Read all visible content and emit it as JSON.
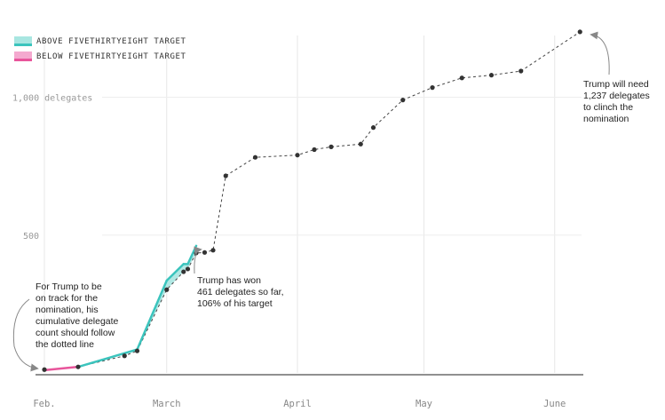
{
  "legend": {
    "above": {
      "label": "ABOVE FIVETHIRTYEIGHT TARGET",
      "color": "#3bc4bd",
      "fill": "#a8e6e1"
    },
    "below": {
      "label": "BELOW FIVETHIRTYEIGHT TARGET",
      "color": "#e8559b",
      "fill": "#f4a9cf"
    }
  },
  "annotations": {
    "current": "Trump has won\n461 delegates so far,\n106% of his target",
    "target": "Trump will need\n1,237 delegates\nto clinch the\nnomination",
    "track": "For Trump to be\non track for the\nnomination, his\ncumulative delegate\ncount should follow\nthe dotted line"
  },
  "chart_data": {
    "type": "line",
    "x_unit": "date (2016)",
    "xlim": [
      "2016-02-01",
      "2016-06-08"
    ],
    "ylim": [
      0,
      1237
    ],
    "y_ticks": [
      {
        "value": 500,
        "label": "500"
      },
      {
        "value": 1000,
        "label": "1,000 delegates"
      }
    ],
    "x_ticks": [
      {
        "date": "2016-02-01",
        "label": "Feb."
      },
      {
        "date": "2016-03-01",
        "label": "March"
      },
      {
        "date": "2016-04-01",
        "label": "April"
      },
      {
        "date": "2016-05-01",
        "label": "May"
      },
      {
        "date": "2016-06-01",
        "label": "June"
      }
    ],
    "grid": "vertical",
    "legend_position": "top-left",
    "target_series": [
      {
        "date": "2016-02-01",
        "value": 12
      },
      {
        "date": "2016-02-09",
        "value": 22
      },
      {
        "date": "2016-02-20",
        "value": 62
      },
      {
        "date": "2016-02-23",
        "value": 80
      },
      {
        "date": "2016-03-01",
        "value": 302
      },
      {
        "date": "2016-03-05",
        "value": 367
      },
      {
        "date": "2016-03-06",
        "value": 377
      },
      {
        "date": "2016-03-08",
        "value": 435
      },
      {
        "date": "2016-03-10",
        "value": 437
      },
      {
        "date": "2016-03-12",
        "value": 445
      },
      {
        "date": "2016-03-15",
        "value": 715
      },
      {
        "date": "2016-03-22",
        "value": 782
      },
      {
        "date": "2016-04-01",
        "value": 790
      },
      {
        "date": "2016-04-05",
        "value": 810
      },
      {
        "date": "2016-04-09",
        "value": 820
      },
      {
        "date": "2016-04-16",
        "value": 830
      },
      {
        "date": "2016-04-19",
        "value": 890
      },
      {
        "date": "2016-04-26",
        "value": 990
      },
      {
        "date": "2016-05-03",
        "value": 1035
      },
      {
        "date": "2016-05-10",
        "value": 1070
      },
      {
        "date": "2016-05-17",
        "value": 1080
      },
      {
        "date": "2016-05-24",
        "value": 1095
      },
      {
        "date": "2016-06-07",
        "value": 1237
      }
    ],
    "actual_series": [
      {
        "date": "2016-02-01",
        "value": 10
      },
      {
        "date": "2016-02-09",
        "value": 22
      },
      {
        "date": "2016-02-23",
        "value": 85
      },
      {
        "date": "2016-03-01",
        "value": 335
      },
      {
        "date": "2016-03-05",
        "value": 395
      },
      {
        "date": "2016-03-06",
        "value": 395
      },
      {
        "date": "2016-03-08",
        "value": 461
      }
    ]
  }
}
